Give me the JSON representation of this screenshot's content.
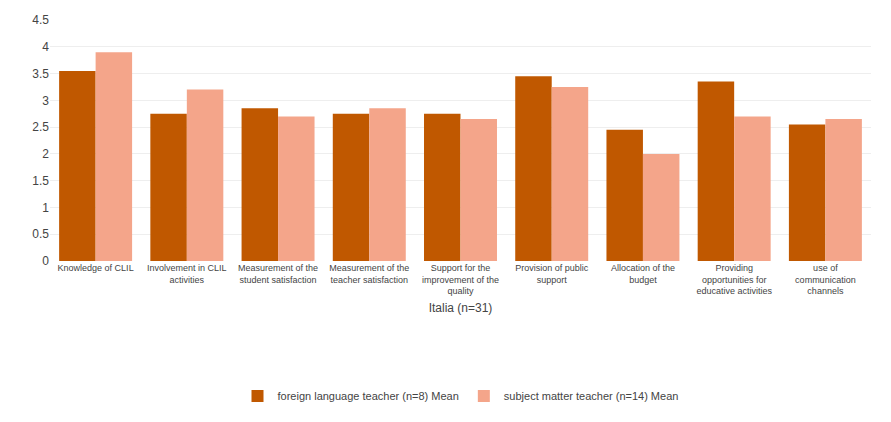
{
  "chart_data": {
    "type": "bar",
    "categories": [
      "Knowledge of CLIL",
      "Involvement in CLIL\nactivities",
      "Measurement of the\nstudent satisfaction",
      "Measurement of the\nteacher satisfaction",
      "Support for the\nimprovement of the\nquality",
      "Provision of public\nsupport",
      "Allocation of the\nbudget",
      "Providing\nopportunities for\neducative activities",
      "use of\ncommunication\nchannels"
    ],
    "series": [
      {
        "name": "foreign language teacher (n=8) Mean",
        "color": "#C05800",
        "values": [
          3.55,
          2.75,
          2.85,
          2.75,
          2.75,
          3.45,
          2.45,
          3.35,
          2.55
        ]
      },
      {
        "name": "subject matter teacher (n=14) Mean",
        "color": "#F4A58A",
        "values": [
          3.9,
          3.2,
          2.7,
          2.85,
          2.65,
          3.25,
          2.0,
          2.7,
          2.65
        ]
      }
    ],
    "xlabel": "Italia (n=31)",
    "ylim": [
      0,
      4.5
    ],
    "yticks": [
      0,
      0.5,
      1,
      1.5,
      2,
      2.5,
      3,
      3.5,
      4,
      4.5
    ],
    "grid": true,
    "legend": "bottom"
  }
}
